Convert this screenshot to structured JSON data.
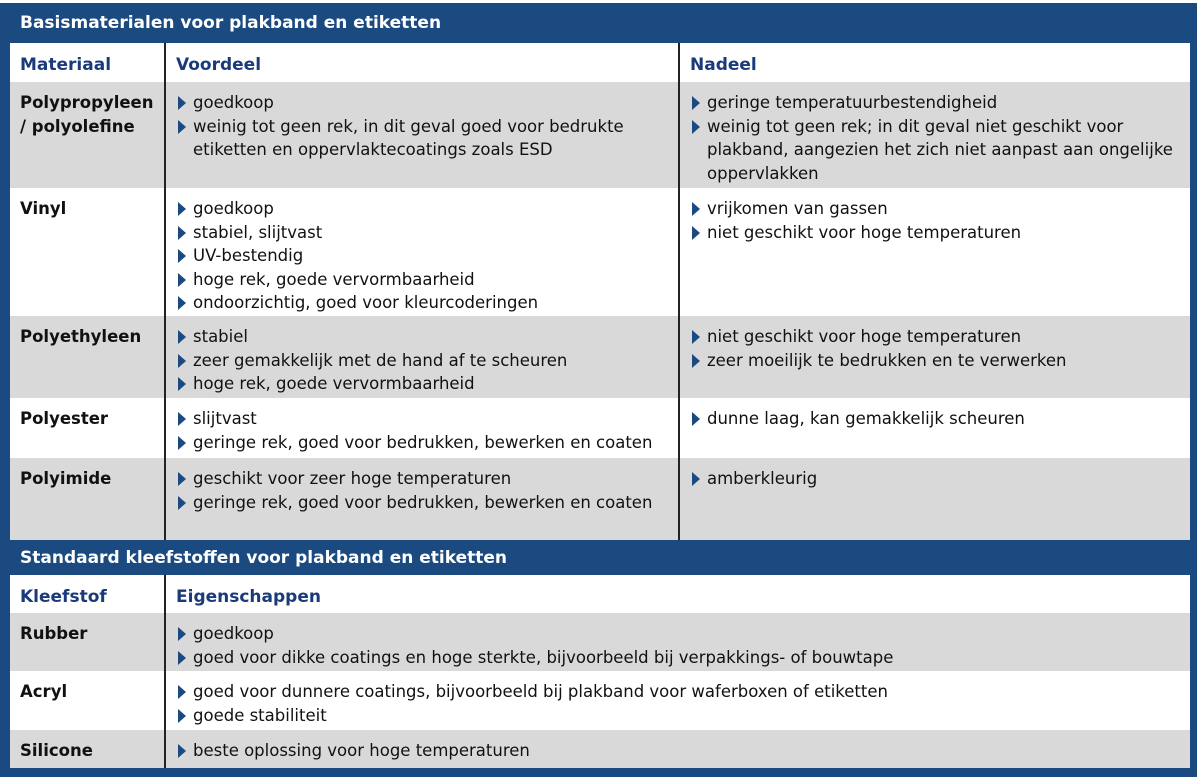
{
  "table1": {
    "title": "Basismaterialen voor plakband en etiketten",
    "headers": [
      "Materiaal",
      "Voordeel",
      "Nadeel"
    ],
    "rows": [
      {
        "name": "Polypropyleen / polyolefine",
        "voordeel": [
          "goedkoop",
          "weinig tot geen rek, in dit geval goed voor bedrukte etiketten en oppervlaktecoatings zoals ESD"
        ],
        "nadeel": [
          "geringe temperatuurbestendigheid",
          "weinig tot geen rek; in dit geval niet geschikt voor plakband, aangezien het zich niet aanpast aan ongelijke oppervlakken"
        ]
      },
      {
        "name": "Vinyl",
        "voordeel": [
          "goedkoop",
          "stabiel, slijtvast",
          "UV-bestendig",
          "hoge rek, goede vervormbaarheid",
          "ondoorzichtig, goed voor kleurcoderingen"
        ],
        "nadeel": [
          "vrijkomen van gassen",
          "niet geschikt voor hoge temperaturen"
        ]
      },
      {
        "name": "Polyethyleen",
        "voordeel": [
          "stabiel",
          "zeer gemakkelijk met de hand af te scheuren",
          "hoge rek, goede vervormbaarheid"
        ],
        "nadeel": [
          "niet geschikt voor hoge temperaturen",
          "zeer moeilijk te bedrukken en te verwerken"
        ]
      },
      {
        "name": "Polyester",
        "voordeel": [
          "slijtvast",
          "geringe rek, goed voor bedrukken, bewerken en coaten"
        ],
        "nadeel": [
          "dunne laag, kan gemakkelijk scheuren"
        ]
      },
      {
        "name": "Polyimide",
        "voordeel": [
          "geschikt voor zeer hoge temperaturen",
          "geringe rek, goed voor bedrukken, bewerken en coaten"
        ],
        "nadeel": [
          "amberkleurig"
        ]
      }
    ]
  },
  "table2": {
    "title": "Standaard kleefstoffen voor plakband en etiketten",
    "headers": [
      "Kleefstof",
      "Eigenschappen"
    ],
    "rows": [
      {
        "name": "Rubber",
        "eigenschappen": [
          "goedkoop",
          "goed voor dikke coatings en hoge sterkte, bijvoorbeeld bij verpakkings- of bouwtape"
        ]
      },
      {
        "name": "Acryl",
        "eigenschappen": [
          "goed voor dunnere coatings, bijvoorbeeld bij plakband voor waferboxen of etiketten",
          "goede stabiliteit"
        ]
      },
      {
        "name": "Silicone",
        "eigenschappen": [
          "beste oplossing voor hoge temperaturen"
        ]
      }
    ]
  },
  "colors": {
    "frame": "#1b4a80",
    "header_text": "#1a3a7a",
    "row_grey": "#d9d9d9",
    "bullet": "#1b4a80"
  },
  "icons": {
    "bullet": "triangle-right-icon"
  }
}
